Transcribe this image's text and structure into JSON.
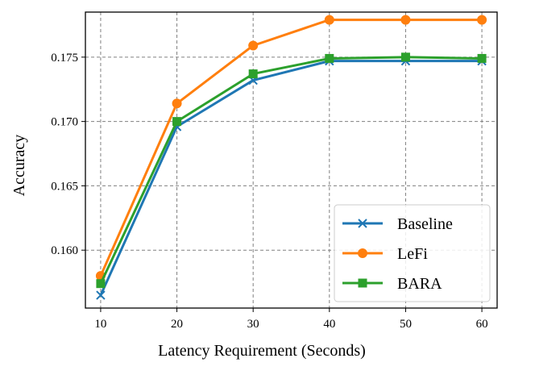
{
  "chart_data": {
    "type": "line",
    "title": "",
    "xlabel": "Latency Requirement (Seconds)",
    "ylabel": "Accuracy",
    "x": [
      10,
      20,
      30,
      40,
      50,
      60
    ],
    "xlim": [
      8,
      62
    ],
    "ylim": [
      0.1555,
      0.1785
    ],
    "xticks": [
      "10",
      "20",
      "30",
      "40",
      "50",
      "60"
    ],
    "yticks": [
      "0.160",
      "0.165",
      "0.170",
      "0.175"
    ],
    "grid": true,
    "legend_position": "lower-right",
    "series": [
      {
        "name": "Baseline",
        "color": "#1f77b4",
        "marker": "x",
        "values": [
          0.1565,
          0.1696,
          0.1732,
          0.1747,
          0.1747,
          0.1747
        ]
      },
      {
        "name": "LeFi",
        "color": "#ff7f0e",
        "marker": "circle",
        "values": [
          0.158,
          0.1714,
          0.1759,
          0.1779,
          0.1779,
          0.1779
        ]
      },
      {
        "name": "BARA",
        "color": "#2ca02c",
        "marker": "square",
        "values": [
          0.1574,
          0.17,
          0.1737,
          0.1749,
          0.175,
          0.1749
        ]
      }
    ]
  }
}
